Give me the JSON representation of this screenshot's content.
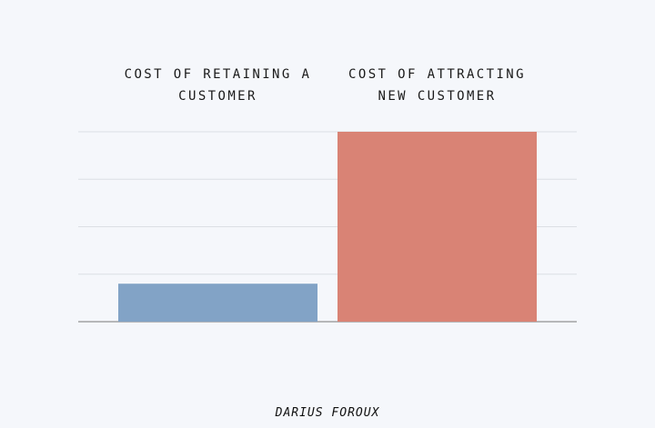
{
  "chart_data": {
    "type": "bar",
    "categories": [
      "COST OF RETAINING A CUSTOMER",
      "COST OF ATTRACTING NEW CUSTOMER"
    ],
    "series": [
      {
        "values": [
          0.8,
          4
        ],
        "colors": [
          "#82a3c6",
          "#d98375"
        ]
      }
    ],
    "ylim": [
      0,
      4
    ],
    "yticks": [
      0,
      1,
      2,
      3,
      4
    ],
    "grid": true,
    "tick_labels": false,
    "credit": "DARIUS FOROUX"
  }
}
